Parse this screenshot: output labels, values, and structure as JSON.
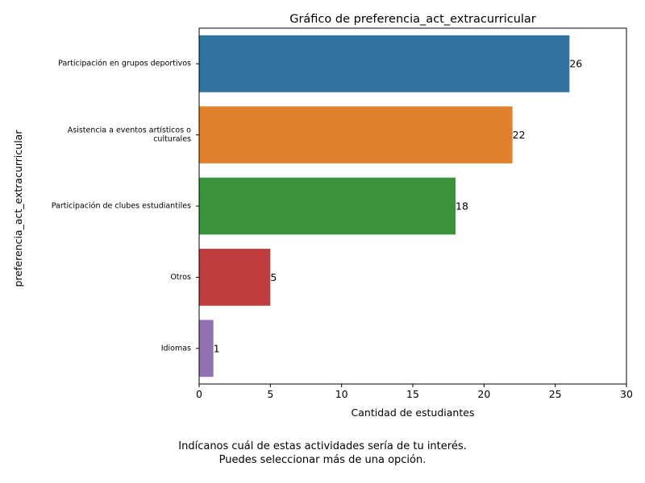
{
  "chart_data": {
    "type": "bar",
    "orientation": "horizontal",
    "title": "Gráfico de preferencia_act_extracurricular",
    "xlabel": "Cantidad de estudiantes",
    "ylabel": "preferencia_act_extracurricular",
    "categories": [
      [
        "Participación en grupos deportivos"
      ],
      [
        "Asistencia a eventos artísticos o",
        "culturales"
      ],
      [
        "Participación de clubes estudiantiles"
      ],
      [
        "Otros"
      ],
      [
        "Idiomas"
      ]
    ],
    "values": [
      26,
      22,
      18,
      5,
      1
    ],
    "colors": [
      "#3274a1",
      "#e1812c",
      "#3a923a",
      "#c03d3e",
      "#9372b2"
    ],
    "xlim": [
      0,
      30
    ],
    "xticks": [
      0,
      5,
      10,
      15,
      20,
      25,
      30
    ],
    "grid": false,
    "data_labels": true
  },
  "caption": [
    "Indícanos cuál de estas actividades sería de tu interés.",
    "Puedes seleccionar más de una opción."
  ]
}
